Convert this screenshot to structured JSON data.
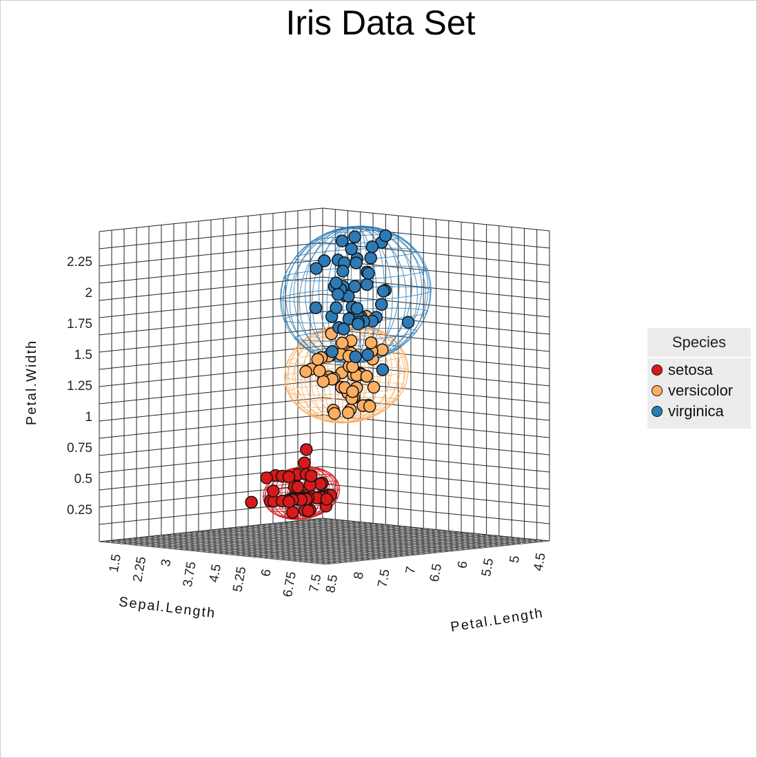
{
  "chart_data": {
    "type": "scatter",
    "title": "Iris Data Set",
    "axes": {
      "sepal_length": {
        "label": "Sepal.Length",
        "ticks": [
          "4.5",
          "5",
          "5.5",
          "6",
          "6.5",
          "7",
          "7.5",
          "8",
          "8.5"
        ],
        "range": [
          4.3,
          8.6
        ]
      },
      "petal_length": {
        "label": "Petal.Length",
        "ticks": [
          "1.5",
          "2.25",
          "3",
          "3.75",
          "4.5",
          "5.25",
          "6",
          "6.75",
          "7.5"
        ],
        "range": [
          1.0,
          7.8
        ]
      },
      "petal_width": {
        "label": "Petal.Width",
        "ticks": [
          "0.25",
          "0.5",
          "0.75",
          "1",
          "1.25",
          "1.5",
          "1.75",
          "2",
          "2.25"
        ],
        "range": [
          0.0,
          2.5
        ]
      }
    },
    "legend": {
      "title": "Species",
      "placement": "right",
      "items": [
        {
          "name": "setosa",
          "color": "#d7191c"
        },
        {
          "name": "versicolor",
          "color": "#fdae61"
        },
        {
          "name": "virginica",
          "color": "#2c7bb6"
        }
      ]
    },
    "series": [
      {
        "name": "setosa",
        "color": "#d7191c",
        "points": [
          [
            5.1,
            1.4,
            0.2
          ],
          [
            4.9,
            1.4,
            0.2
          ],
          [
            4.7,
            1.3,
            0.2
          ],
          [
            4.6,
            1.5,
            0.2
          ],
          [
            5.0,
            1.4,
            0.2
          ],
          [
            5.4,
            1.7,
            0.4
          ],
          [
            4.6,
            1.4,
            0.3
          ],
          [
            5.0,
            1.5,
            0.2
          ],
          [
            4.4,
            1.4,
            0.2
          ],
          [
            4.9,
            1.5,
            0.1
          ],
          [
            5.4,
            1.5,
            0.2
          ],
          [
            4.8,
            1.6,
            0.2
          ],
          [
            4.8,
            1.4,
            0.1
          ],
          [
            4.3,
            1.1,
            0.1
          ],
          [
            5.8,
            1.2,
            0.2
          ],
          [
            5.7,
            1.5,
            0.4
          ],
          [
            5.4,
            1.3,
            0.4
          ],
          [
            5.1,
            1.4,
            0.3
          ],
          [
            5.7,
            1.7,
            0.3
          ],
          [
            5.1,
            1.5,
            0.3
          ],
          [
            5.4,
            1.7,
            0.2
          ],
          [
            5.1,
            1.5,
            0.4
          ],
          [
            4.6,
            1.0,
            0.2
          ],
          [
            5.1,
            1.7,
            0.5
          ],
          [
            4.8,
            1.9,
            0.2
          ],
          [
            5.0,
            1.6,
            0.2
          ],
          [
            5.0,
            1.6,
            0.4
          ],
          [
            5.2,
            1.5,
            0.2
          ],
          [
            5.2,
            1.4,
            0.2
          ],
          [
            4.7,
            1.6,
            0.2
          ],
          [
            4.8,
            1.6,
            0.2
          ],
          [
            5.4,
            1.5,
            0.4
          ],
          [
            5.2,
            1.5,
            0.1
          ],
          [
            5.5,
            1.4,
            0.2
          ],
          [
            4.9,
            1.5,
            0.2
          ],
          [
            5.0,
            1.2,
            0.2
          ],
          [
            5.5,
            1.3,
            0.2
          ],
          [
            4.9,
            1.4,
            0.1
          ],
          [
            4.4,
            1.3,
            0.2
          ],
          [
            5.1,
            1.5,
            0.2
          ],
          [
            5.0,
            1.3,
            0.3
          ],
          [
            4.5,
            1.3,
            0.3
          ],
          [
            4.4,
            1.3,
            0.2
          ],
          [
            5.0,
            1.6,
            0.6
          ],
          [
            5.1,
            1.9,
            0.4
          ],
          [
            4.8,
            1.4,
            0.3
          ],
          [
            5.1,
            1.6,
            0.2
          ],
          [
            4.6,
            1.4,
            0.2
          ],
          [
            5.3,
            1.5,
            0.2
          ],
          [
            5.0,
            1.4,
            0.2
          ]
        ]
      },
      {
        "name": "versicolor",
        "color": "#fdae61",
        "points": [
          [
            7.0,
            4.7,
            1.4
          ],
          [
            6.4,
            4.5,
            1.5
          ],
          [
            6.9,
            4.9,
            1.5
          ],
          [
            5.5,
            4.0,
            1.3
          ],
          [
            6.5,
            4.6,
            1.5
          ],
          [
            5.7,
            4.5,
            1.3
          ],
          [
            6.3,
            4.7,
            1.6
          ],
          [
            4.9,
            3.3,
            1.0
          ],
          [
            6.6,
            4.6,
            1.3
          ],
          [
            5.2,
            3.9,
            1.4
          ],
          [
            5.0,
            3.5,
            1.0
          ],
          [
            5.9,
            4.2,
            1.5
          ],
          [
            6.0,
            4.0,
            1.0
          ],
          [
            6.1,
            4.7,
            1.4
          ],
          [
            5.6,
            3.6,
            1.3
          ],
          [
            6.7,
            4.4,
            1.4
          ],
          [
            5.6,
            4.5,
            1.5
          ],
          [
            5.8,
            4.1,
            1.0
          ],
          [
            6.2,
            4.5,
            1.5
          ],
          [
            5.6,
            3.9,
            1.1
          ],
          [
            5.9,
            4.8,
            1.8
          ],
          [
            6.1,
            4.0,
            1.3
          ],
          [
            6.3,
            4.9,
            1.5
          ],
          [
            6.1,
            4.7,
            1.2
          ],
          [
            6.4,
            4.3,
            1.3
          ],
          [
            6.6,
            4.4,
            1.4
          ],
          [
            6.8,
            4.8,
            1.4
          ],
          [
            6.7,
            5.0,
            1.7
          ],
          [
            6.0,
            4.5,
            1.5
          ],
          [
            5.7,
            3.5,
            1.0
          ],
          [
            5.5,
            3.8,
            1.1
          ],
          [
            5.5,
            3.7,
            1.0
          ],
          [
            5.8,
            3.9,
            1.2
          ],
          [
            6.0,
            5.1,
            1.6
          ],
          [
            5.4,
            4.5,
            1.5
          ],
          [
            6.0,
            4.5,
            1.6
          ],
          [
            6.7,
            4.7,
            1.5
          ],
          [
            6.3,
            4.4,
            1.3
          ],
          [
            5.6,
            4.1,
            1.3
          ],
          [
            5.5,
            4.0,
            1.3
          ],
          [
            5.5,
            4.4,
            1.2
          ],
          [
            6.1,
            4.6,
            1.4
          ],
          [
            5.8,
            4.0,
            1.2
          ],
          [
            5.0,
            3.3,
            1.0
          ],
          [
            5.6,
            4.2,
            1.3
          ],
          [
            5.7,
            4.2,
            1.2
          ],
          [
            5.7,
            4.2,
            1.3
          ],
          [
            6.2,
            4.3,
            1.3
          ],
          [
            5.1,
            3.0,
            1.1
          ],
          [
            5.7,
            4.1,
            1.3
          ]
        ]
      },
      {
        "name": "virginica",
        "color": "#2c7bb6",
        "points": [
          [
            6.3,
            6.0,
            2.5
          ],
          [
            5.8,
            5.1,
            1.9
          ],
          [
            7.1,
            5.9,
            2.1
          ],
          [
            6.3,
            5.6,
            1.8
          ],
          [
            6.5,
            5.8,
            2.2
          ],
          [
            7.6,
            6.6,
            2.1
          ],
          [
            4.9,
            4.5,
            1.7
          ],
          [
            7.3,
            6.3,
            1.8
          ],
          [
            6.7,
            5.8,
            1.8
          ],
          [
            7.2,
            6.1,
            2.5
          ],
          [
            6.5,
            5.1,
            2.0
          ],
          [
            6.4,
            5.3,
            1.9
          ],
          [
            6.8,
            5.5,
            2.1
          ],
          [
            5.7,
            5.0,
            2.0
          ],
          [
            5.8,
            5.1,
            2.4
          ],
          [
            6.4,
            5.3,
            2.3
          ],
          [
            6.5,
            5.5,
            1.8
          ],
          [
            7.7,
            6.7,
            2.2
          ],
          [
            7.7,
            6.9,
            2.3
          ],
          [
            6.0,
            5.0,
            1.5
          ],
          [
            6.9,
            5.7,
            2.3
          ],
          [
            5.6,
            4.9,
            2.0
          ],
          [
            7.7,
            6.7,
            2.0
          ],
          [
            6.3,
            4.9,
            1.8
          ],
          [
            6.7,
            5.7,
            2.1
          ],
          [
            7.2,
            6.0,
            1.8
          ],
          [
            6.2,
            4.8,
            1.8
          ],
          [
            6.1,
            4.9,
            1.8
          ],
          [
            6.4,
            5.6,
            2.1
          ],
          [
            7.2,
            5.8,
            1.6
          ],
          [
            7.4,
            6.1,
            1.9
          ],
          [
            7.9,
            6.4,
            2.0
          ],
          [
            6.4,
            5.6,
            2.2
          ],
          [
            6.3,
            5.1,
            1.5
          ],
          [
            6.1,
            5.6,
            1.4
          ],
          [
            7.7,
            6.1,
            2.3
          ],
          [
            6.3,
            5.6,
            2.4
          ],
          [
            6.4,
            5.5,
            1.8
          ],
          [
            6.0,
            4.8,
            1.8
          ],
          [
            6.9,
            5.4,
            2.1
          ],
          [
            6.7,
            5.6,
            2.4
          ],
          [
            6.9,
            5.1,
            2.3
          ],
          [
            5.8,
            5.1,
            1.9
          ],
          [
            6.8,
            5.9,
            2.3
          ],
          [
            6.7,
            5.7,
            2.5
          ],
          [
            6.7,
            5.2,
            2.3
          ],
          [
            6.3,
            5.0,
            1.9
          ],
          [
            6.5,
            5.2,
            2.0
          ],
          [
            6.2,
            5.4,
            2.3
          ],
          [
            5.9,
            5.1,
            1.8
          ]
        ]
      }
    ]
  }
}
